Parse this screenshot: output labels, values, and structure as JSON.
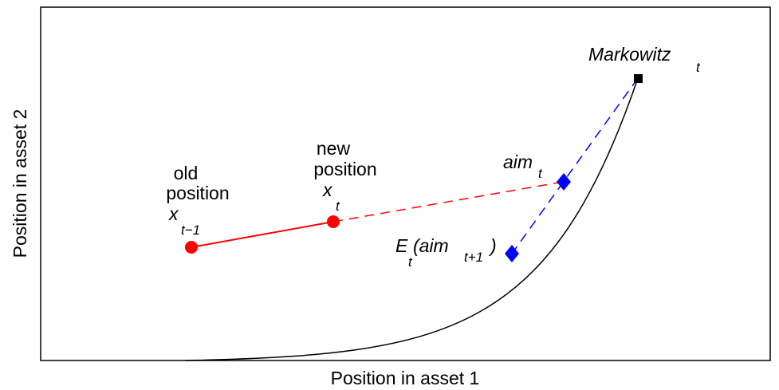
{
  "diagram": {
    "xlabel": "Position in asset 1",
    "ylabel": "Position in asset 2",
    "labels": {
      "old_line1": "old",
      "old_line2": "position",
      "old_x": "x",
      "old_sub": "t−1",
      "new_line1": "new",
      "new_line2": "position",
      "new_x": "x",
      "new_sub": "t",
      "aim": "aim",
      "aim_sub": "t",
      "exp_pre": "E",
      "exp_sub1": "t",
      "exp_mid": "(aim",
      "exp_sub2": "t+1",
      "exp_close": ")",
      "markowitz": "Markowitz",
      "markowitz_sub": "t"
    },
    "colors": {
      "trade": "#ff0000",
      "aim": "#0000ff",
      "frontier": "#000000",
      "markowitz": "#000000"
    }
  }
}
